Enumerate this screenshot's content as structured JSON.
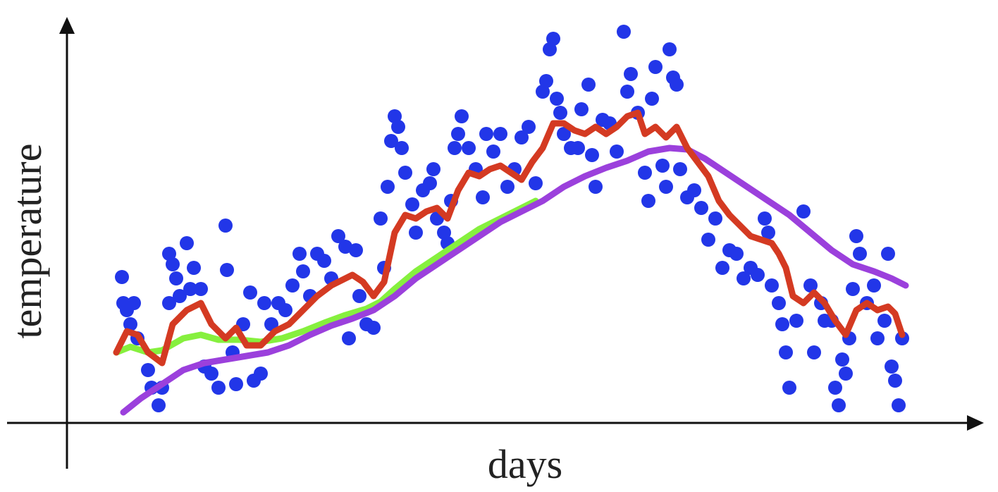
{
  "chart_data": {
    "type": "scatter",
    "x_label": "days",
    "y_label": "temperature",
    "xlim": [
      0,
      1300
    ],
    "ylim": [
      0,
      575
    ],
    "series": [
      {
        "type": "scatter",
        "color": "#2236e8",
        "x": [
          78,
          80,
          85,
          95,
          90,
          100,
          115,
          120,
          130,
          135,
          145,
          145,
          150,
          155,
          160,
          170,
          175,
          180,
          190,
          195,
          205,
          215,
          225,
          227,
          235,
          240,
          250,
          260,
          265,
          275,
          280,
          290,
          300,
          310,
          320,
          330,
          335,
          345,
          355,
          365,
          375,
          385,
          395,
          400,
          410,
          415,
          425,
          435,
          445,
          450,
          455,
          460,
          465,
          470,
          475,
          480,
          490,
          495,
          505,
          515,
          520,
          525,
          535,
          540,
          545,
          550,
          555,
          560,
          570,
          580,
          590,
          595,
          605,
          615,
          625,
          635,
          645,
          655,
          665,
          675,
          680,
          685,
          690,
          695,
          700,
          705,
          715,
          725,
          730,
          740,
          745,
          750,
          760,
          770,
          780,
          790,
          795,
          800,
          810,
          820,
          825,
          830,
          835,
          845,
          850,
          855,
          860,
          865,
          870,
          880,
          890,
          900,
          910,
          920,
          930,
          940,
          950,
          960,
          970,
          980,
          990,
          995,
          1000,
          1010,
          1015,
          1020,
          1025,
          1035,
          1045,
          1055,
          1060,
          1070,
          1075,
          1085,
          1090,
          1095,
          1100,
          1105,
          1110,
          1115,
          1120,
          1125,
          1135,
          1145,
          1150,
          1160,
          1165,
          1170,
          1175,
          1180,
          1185
        ],
        "values": [
          207,
          170,
          160,
          170,
          140,
          120,
          75,
          50,
          25,
          50,
          170,
          240,
          225,
          205,
          180,
          255,
          190,
          220,
          190,
          80,
          70,
          50,
          280,
          217,
          100,
          55,
          140,
          185,
          60,
          70,
          170,
          140,
          170,
          160,
          195,
          240,
          215,
          180,
          240,
          230,
          205,
          265,
          250,
          120,
          245,
          180,
          140,
          135,
          290,
          220,
          335,
          400,
          435,
          420,
          390,
          355,
          310,
          270,
          330,
          340,
          360,
          290,
          270,
          255,
          315,
          390,
          410,
          435,
          390,
          360,
          320,
          410,
          385,
          410,
          335,
          360,
          405,
          420,
          340,
          470,
          485,
          530,
          545,
          460,
          440,
          410,
          390,
          390,
          445,
          480,
          380,
          335,
          430,
          425,
          385,
          555,
          470,
          495,
          440,
          355,
          315,
          460,
          505,
          365,
          335,
          530,
          490,
          480,
          360,
          320,
          330,
          305,
          260,
          290,
          220,
          245,
          240,
          205,
          220,
          210,
          290,
          270,
          195,
          170,
          140,
          100,
          50,
          145,
          300,
          195,
          100,
          170,
          145,
          145,
          50,
          25,
          90,
          70,
          120,
          190,
          265,
          240,
          170,
          195,
          120,
          145,
          240,
          80,
          60,
          25,
          120
        ]
      },
      {
        "type": "line",
        "color": "#86f03e",
        "x": [
          70,
          90,
          115,
          135,
          165,
          190,
          215,
          245,
          275,
          305,
          335,
          365,
          395,
          425,
          445,
          465,
          495,
          525,
          555,
          585,
          615,
          645,
          665
        ],
        "values": [
          100,
          108,
          100,
          103,
          120,
          125,
          118,
          118,
          115,
          120,
          130,
          142,
          153,
          162,
          172,
          190,
          215,
          235,
          255,
          275,
          290,
          305,
          315
        ]
      },
      {
        "type": "line",
        "color": "#9b40dc",
        "x": [
          80,
          105,
          135,
          165,
          195,
          225,
          255,
          285,
          315,
          345,
          375,
          405,
          435,
          465,
          495,
          525,
          555,
          585,
          615,
          645,
          675,
          705,
          735,
          765,
          795,
          825,
          855,
          880,
          905,
          935,
          965,
          995,
          1025,
          1055,
          1085,
          1115,
          1145,
          1170,
          1190
        ],
        "values": [
          15,
          35,
          55,
          75,
          85,
          90,
          95,
          100,
          110,
          125,
          138,
          148,
          160,
          180,
          205,
          225,
          245,
          265,
          285,
          300,
          315,
          335,
          350,
          362,
          372,
          385,
          390,
          388,
          375,
          355,
          335,
          315,
          295,
          270,
          245,
          225,
          215,
          205,
          195
        ]
      },
      {
        "type": "line",
        "color": "#d43a22",
        "x": [
          70,
          85,
          100,
          115,
          135,
          150,
          170,
          190,
          205,
          225,
          240,
          255,
          275,
          295,
          315,
          335,
          355,
          375,
          395,
          405,
          420,
          435,
          450,
          465,
          480,
          495,
          510,
          525,
          540,
          555,
          570,
          585,
          600,
          615,
          630,
          645,
          660,
          675,
          690,
          705,
          720,
          735,
          750,
          765,
          780,
          795,
          810,
          820,
          835,
          850,
          865,
          880,
          895,
          910,
          925,
          940,
          955,
          970,
          985,
          1000,
          1010,
          1020,
          1030,
          1045,
          1060,
          1075,
          1090,
          1105,
          1120,
          1135,
          1150,
          1165,
          1175,
          1185
        ],
        "values": [
          100,
          130,
          125,
          100,
          85,
          140,
          160,
          170,
          140,
          120,
          135,
          110,
          110,
          130,
          140,
          160,
          180,
          195,
          205,
          210,
          200,
          180,
          200,
          270,
          295,
          290,
          300,
          305,
          290,
          330,
          355,
          350,
          360,
          365,
          355,
          345,
          370,
          390,
          425,
          425,
          415,
          410,
          420,
          410,
          420,
          435,
          440,
          410,
          420,
          405,
          420,
          390,
          370,
          350,
          315,
          295,
          280,
          265,
          260,
          255,
          240,
          220,
          180,
          170,
          185,
          170,
          145,
          125,
          160,
          170,
          160,
          165,
          155,
          125
        ]
      }
    ]
  }
}
